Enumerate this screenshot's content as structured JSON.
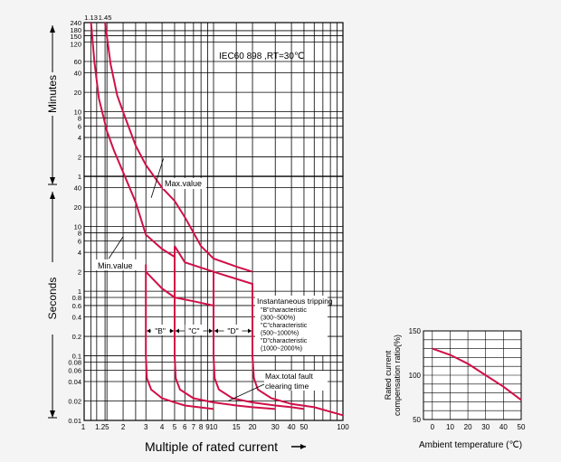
{
  "chart_data": [
    {
      "type": "line",
      "note_standard": "IEC60 898 ,RT=30℃",
      "xlabel": "Multiple of rated current",
      "x_scale": "log",
      "x_ticks": [
        "1",
        "1.25",
        "2",
        "3",
        "4",
        "5",
        "6",
        "7",
        "8",
        "9",
        "10",
        "15",
        "20",
        "30",
        "40",
        "50",
        "100"
      ],
      "top_labels": [
        "1.13",
        "1.45"
      ],
      "minutes_label": "Minutes",
      "seconds_label": "Seconds",
      "minutes_ticks": [
        "240",
        "180",
        "150",
        "120",
        "60",
        "40",
        "20",
        "10",
        "8",
        "6",
        "4",
        "2",
        "1"
      ],
      "seconds_ticks": [
        "40",
        "20",
        "10",
        "8",
        "6",
        "4",
        "2",
        "1",
        "0.8",
        "0.6",
        "0.4",
        "0.2",
        "0.1",
        "0.08",
        "0.06",
        "0.04",
        "0.02",
        "0.01"
      ],
      "y_unit": "seconds",
      "series": [
        {
          "name": "Max.value",
          "x": [
            1.45,
            1.6,
            1.8,
            2.0,
            2.5,
            3,
            4,
            5,
            6,
            8,
            10,
            15,
            20
          ],
          "y": [
            14400,
            3300,
            1080,
            600,
            180,
            90,
            40,
            25,
            14,
            5,
            3.2,
            2.4,
            2.0
          ]
        },
        {
          "name": "Min.value",
          "x": [
            1.13,
            1.2,
            1.3,
            1.5,
            1.7,
            2.0,
            2.5,
            3,
            4,
            5
          ],
          "y": [
            14400,
            3600,
            960,
            300,
            150,
            70,
            24,
            7.5,
            4.5,
            3.4
          ]
        }
      ],
      "extra_lines": [
        {
          "x": [
            3,
            3,
            3.05,
            3.3,
            4,
            5,
            6,
            10
          ],
          "y": [
            2.6,
            0.1,
            0.045,
            0.03,
            0.022,
            0.019,
            0.017,
            0.015
          ]
        },
        {
          "x": [
            3,
            4,
            5,
            7,
            10
          ],
          "y": [
            2.0,
            1.1,
            0.8,
            0.7,
            0.6
          ]
        },
        {
          "x": [
            5,
            5,
            5.1,
            5.5,
            7,
            10,
            15,
            20,
            30
          ],
          "y": [
            5,
            0.1,
            0.045,
            0.03,
            0.022,
            0.019,
            0.017,
            0.016,
            0.015
          ]
        },
        {
          "x": [
            5,
            6,
            10
          ],
          "y": [
            5,
            2.8,
            2.0
          ]
        },
        {
          "x": [
            10,
            10,
            10.2,
            11,
            14,
            20,
            30,
            40,
            50
          ],
          "y": [
            2.0,
            0.1,
            0.045,
            0.03,
            0.022,
            0.019,
            0.017,
            0.016,
            0.015
          ]
        },
        {
          "x": [
            10,
            20,
            20
          ],
          "y": [
            2.0,
            1.3,
            0.1
          ]
        },
        {
          "x": [
            20,
            20.5,
            22,
            28,
            40,
            60,
            100
          ],
          "y": [
            0.1,
            0.045,
            0.03,
            0.022,
            0.018,
            0.016,
            0.012
          ]
        }
      ],
      "annotations": {
        "max_value": "Max.value",
        "min_value": "Min.value",
        "instantaneous": [
          "Instantaneous tripping",
          "\"B\"characteristic",
          "(300~500%)",
          "\"C\"characteristic",
          "(500~1000%)",
          "\"D\"characteristic",
          "(1000~2000%)"
        ],
        "fault": [
          "Max.total fault",
          "clearing time"
        ],
        "bands": [
          "\"B\"",
          "\"C\"",
          "\"D\""
        ]
      },
      "legend": "none",
      "grid": true
    },
    {
      "type": "line",
      "xlabel": "Ambient temperature (℃)",
      "ylabel": [
        "Rated current",
        "compensation ratio(%)"
      ],
      "x": [
        0,
        10,
        20,
        30,
        40,
        50
      ],
      "y": [
        130,
        123,
        113,
        100,
        87,
        72
      ],
      "xlim": [
        -5,
        50
      ],
      "ylim": [
        50,
        150
      ],
      "x_ticks": [
        "0",
        "10",
        "20",
        "30",
        "40",
        "50"
      ],
      "y_ticks": [
        "50",
        "100",
        "150"
      ],
      "grid": true
    }
  ]
}
